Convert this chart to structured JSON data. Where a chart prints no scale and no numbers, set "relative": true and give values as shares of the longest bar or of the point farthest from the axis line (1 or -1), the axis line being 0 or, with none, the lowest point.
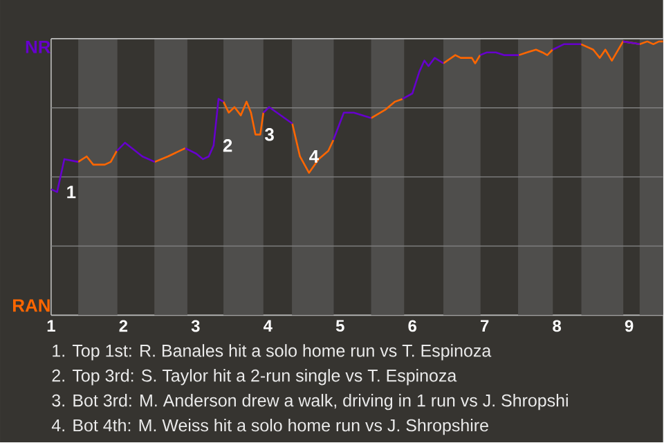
{
  "chart_data": {
    "type": "line",
    "relative": true,
    "xlim": [
      1,
      9.47
    ],
    "xticks": [
      1,
      2,
      3,
      4,
      5,
      6,
      7,
      8,
      9
    ],
    "grid": "y",
    "marker": "none",
    "bands": [
      {
        "axis": "x",
        "from": 1.375,
        "to": 1.917,
        "color": "#4f4e4c"
      },
      {
        "axis": "x",
        "from": 2.429,
        "to": 2.886,
        "color": "#4f4e4c"
      },
      {
        "axis": "x",
        "from": 3.385,
        "to": 3.938,
        "color": "#4f4e4c"
      },
      {
        "axis": "x",
        "from": 4.333,
        "to": 4.911,
        "color": "#4f4e4c"
      },
      {
        "axis": "x",
        "from": 5.429,
        "to": 5.886,
        "color": "#4f4e4c"
      },
      {
        "axis": "x",
        "from": 6.429,
        "to": 6.943,
        "color": "#4f4e4c"
      },
      {
        "axis": "x",
        "from": 7.463,
        "to": 7.944,
        "color": "#4f4e4c"
      },
      {
        "axis": "x",
        "from": 8.339,
        "to": 8.919,
        "color": "#4f4e4c"
      },
      {
        "axis": "x",
        "from": 9.145,
        "to": 9.47,
        "color": "#4f4e4c"
      }
    ],
    "series": [
      {
        "color": "#6600cc",
        "x": [
          1,
          1.083,
          1.183,
          1.375,
          1.492,
          1.583,
          1.742,
          1.825,
          1.908,
          2.023,
          2.263,
          2.434,
          2.617,
          2.857,
          3.009,
          3.102,
          3.182,
          3.249,
          3.317,
          3.385,
          3.458,
          3.538,
          3.625,
          3.705,
          3.766,
          3.828,
          3.895,
          3.938,
          4.018,
          4.338,
          4.444,
          4.569,
          4.702,
          4.836,
          4.907,
          5.051,
          5.189,
          5.429,
          5.623,
          5.76,
          5.863,
          6,
          6.097,
          6.166,
          6.223,
          6.309,
          6.429,
          6.594,
          6.669,
          6.823,
          6.869,
          6.937,
          7.03,
          7.156,
          7.274,
          7.474,
          7.585,
          7.711,
          7.8,
          7.867,
          7.941,
          8.097,
          8.335,
          8.503,
          8.594,
          8.671,
          8.761,
          8.916,
          9.148
        ],
        "values": [
          0.46,
          0.45,
          0.57,
          0.56,
          null,
          null,
          null,
          null,
          0.6,
          0.63,
          0.58,
          0.56,
          null,
          0.61,
          0.59,
          0.57,
          0.58,
          0.62,
          0.79,
          0.78,
          null,
          null,
          null,
          null,
          null,
          null,
          null,
          0.74,
          0.76,
          0.7,
          null,
          null,
          null,
          null,
          0.64,
          0.74,
          0.74,
          0.72,
          null,
          null,
          0.79,
          0.81,
          0.89,
          0.93,
          0.91,
          0.94,
          0.92,
          null,
          null,
          null,
          null,
          0.95,
          0.96,
          0.96,
          0.95,
          0.95,
          null,
          null,
          null,
          null,
          0.97,
          0.99,
          0.99,
          null,
          null,
          null,
          null,
          1,
          0.99
        ]
      },
      {
        "color": "#ff6600",
        "x": [
          1.375,
          1.492,
          1.583,
          1.742,
          1.825,
          1.908,
          2.023,
          2.263,
          2.434,
          2.617,
          2.857,
          3.009,
          3.102,
          3.182,
          3.249,
          3.317,
          3.385,
          3.458,
          3.538,
          3.625,
          3.705,
          3.766,
          3.828,
          3.895,
          3.938,
          4.018,
          4.338,
          4.444,
          4.569,
          4.702,
          4.836,
          4.907,
          5.051,
          5.189,
          5.429,
          5.623,
          5.76,
          5.863,
          6,
          6.097,
          6.166,
          6.223,
          6.309,
          6.429,
          6.594,
          6.669,
          6.823,
          6.869,
          6.937,
          7.03,
          7.156,
          7.274,
          7.474,
          7.585,
          7.711,
          7.8,
          7.867,
          7.941,
          8.097,
          8.335,
          8.503,
          8.594,
          8.671,
          8.761,
          8.916,
          9.148,
          9.252,
          9.335,
          9.413,
          9.47
        ],
        "values": [
          0.56,
          0.58,
          0.55,
          0.55,
          0.56,
          0.6,
          null,
          null,
          0.56,
          0.58,
          0.61,
          null,
          null,
          null,
          null,
          null,
          0.78,
          0.74,
          0.76,
          0.73,
          0.78,
          0.74,
          0.66,
          0.66,
          0.74,
          null,
          0.7,
          0.58,
          0.52,
          0.57,
          0.6,
          0.64,
          null,
          null,
          0.72,
          0.75,
          0.78,
          0.79,
          null,
          null,
          null,
          null,
          null,
          0.92,
          0.95,
          0.94,
          0.94,
          0.92,
          0.95,
          null,
          null,
          null,
          0.95,
          0.96,
          0.97,
          0.96,
          0.95,
          0.97,
          null,
          0.99,
          0.97,
          0.94,
          0.97,
          0.93,
          1,
          0.99,
          1,
          0.99,
          1,
          1
        ]
      }
    ],
    "annotations": [
      "NR",
      "RAN",
      {
        "text": "1",
        "x": 1.083,
        "y": 0.45
      },
      {
        "text": "2",
        "x": 3.249,
        "y": 0.62
      },
      {
        "text": "3",
        "x": 3.828,
        "y": 0.66
      },
      {
        "text": "4",
        "x": 4.444,
        "y": 0.58
      },
      "1. Top 1st: R. Banales hit a solo home run vs T. Espinoza",
      "2. Top 3rd: S. Taylor hit a 2-run single vs T. Espinoza",
      "3. Bot 3rd: M. Anderson drew a walk, driving in 1 run vs J. Shropshi",
      "4. Bot 4th: M. Weiss hit a solo home run vs J. Shropshire"
    ]
  }
}
